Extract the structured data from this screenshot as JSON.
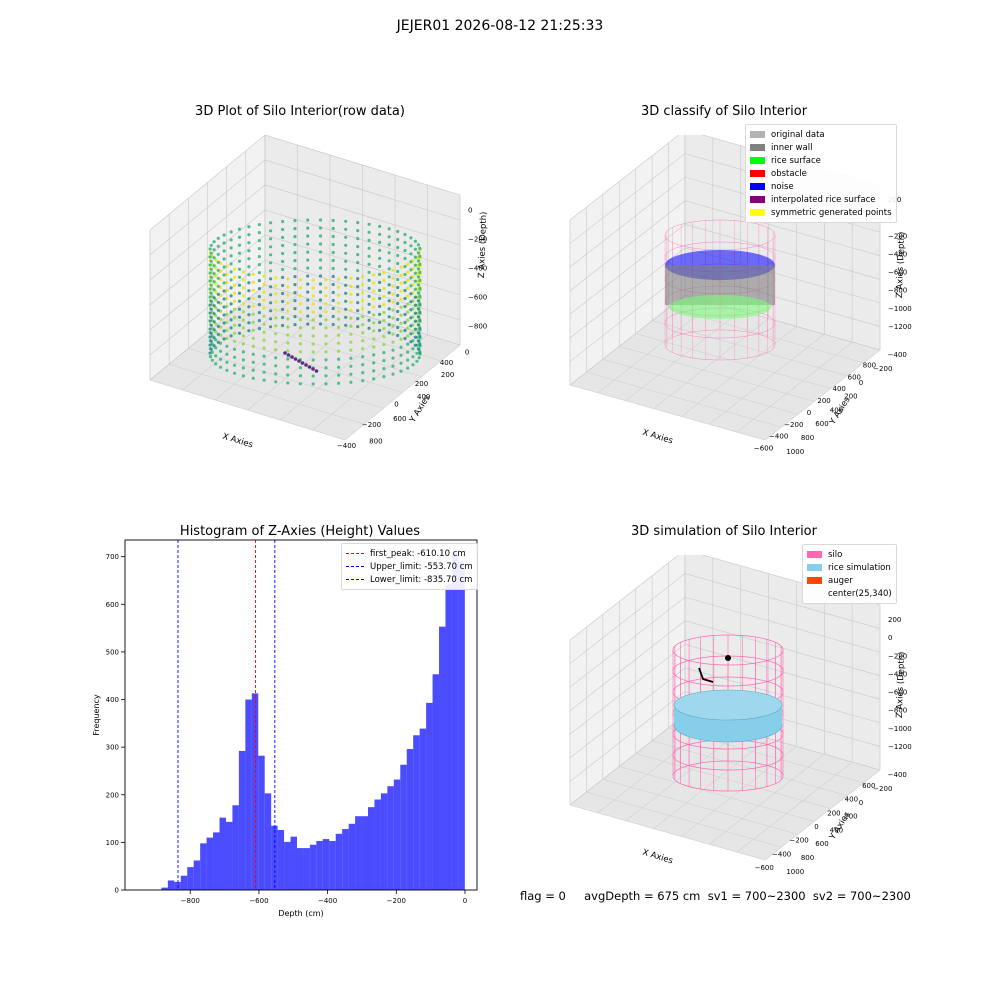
{
  "suptitle": "JEJER01 2026-08-12 21:25:33",
  "status_text": "flag = 0     avgDepth = 675 cm  sv1 = 700~2300  sv2 = 700~2300",
  "panels": {
    "raw": {
      "title": "3D Plot of Silo Interior(row data)",
      "xlabel": "X Axies",
      "ylabel": "Y Axies",
      "zlabel": "Z Axies (Depth)",
      "xticks": [
        "−400",
        "−200",
        "0",
        "200",
        "400"
      ],
      "yticks": [
        "0",
        "200",
        "400",
        "600",
        "800"
      ],
      "zticks": [
        "0",
        "−200",
        "−400",
        "−600",
        "−800"
      ]
    },
    "classify": {
      "title": "3D classify of Silo Interior",
      "xlabel": "X Axies",
      "ylabel": "Y Axies",
      "zlabel": "Z Axies (Depth)",
      "xticks": [
        "−600",
        "−400",
        "−200",
        "0",
        "200",
        "400",
        "600",
        "800"
      ],
      "yticks": [
        "−400",
        "−200",
        "0",
        "200",
        "400",
        "600",
        "800",
        "1000"
      ],
      "zticks": [
        "200",
        "0",
        "−200",
        "−400",
        "−600",
        "−800",
        "−1000",
        "−1200"
      ],
      "legend": [
        {
          "label": "original data",
          "color": "#b3b3b3"
        },
        {
          "label": "inner wall",
          "color": "#808080"
        },
        {
          "label": "rice surface",
          "color": "#00ff00"
        },
        {
          "label": "obstacle",
          "color": "#ff0000"
        },
        {
          "label": "noise",
          "color": "#0000ff"
        },
        {
          "label": "interpolated rice surface",
          "color": "#800080"
        },
        {
          "label": "symmetric generated points",
          "color": "#ffff00"
        }
      ]
    },
    "simulation": {
      "title": "3D simulation of Silo Interior",
      "xlabel": "X Axies",
      "ylabel": "Y Axies",
      "zlabel": "Z Axies (Depth)",
      "xticks": [
        "−600",
        "−400",
        "−200",
        "0",
        "200",
        "400",
        "600"
      ],
      "yticks": [
        "−400",
        "−200",
        "0",
        "200",
        "400",
        "600",
        "800",
        "1000"
      ],
      "zticks": [
        "200",
        "0",
        "−200",
        "−400",
        "−600",
        "−800",
        "−1000",
        "−1200"
      ],
      "legend": [
        {
          "label": "silo",
          "color": "#ff69b4"
        },
        {
          "label": "rice simulation",
          "color": "#87ceeb"
        },
        {
          "label": "auger",
          "color": "#ff4500"
        },
        {
          "label": "center(25,340)",
          "color": "none"
        }
      ]
    }
  },
  "chart_data": {
    "type": "bar",
    "title": "Histogram of Z-Axies (Height) Values",
    "xlabel": "Depth (cm)",
    "ylabel": "Frequency",
    "xlim": [
      -990,
      35
    ],
    "ylim": [
      0,
      735
    ],
    "xticks": [
      -800,
      -600,
      -400,
      -200,
      0
    ],
    "yticks": [
      0,
      100,
      200,
      300,
      400,
      500,
      600,
      700
    ],
    "bar_color": "#0000ff",
    "bin_width": 18.8,
    "bin_starts": [
      -884,
      -865.2,
      -846.4,
      -827.6,
      -808.8,
      -790,
      -771.2,
      -752.4,
      -733.6,
      -714.8,
      -696,
      -677.2,
      -658.4,
      -639.6,
      -620.8,
      -602,
      -583.2,
      -564.4,
      -545.6,
      -526.8,
      -508,
      -489.2,
      -470.4,
      -451.6,
      -432.8,
      -414,
      -395.2,
      -376.4,
      -357.6,
      -338.8,
      -320,
      -301.2,
      -282.4,
      -263.6,
      -244.8,
      -226,
      -207.2,
      -188.4,
      -169.6,
      -150.8,
      -132,
      -113.2,
      -94.4,
      -75.6,
      -56.8,
      -38,
      -19.2
    ],
    "values": [
      5,
      20,
      17,
      30,
      48,
      62,
      98,
      110,
      121,
      152,
      143,
      178,
      292,
      400,
      413,
      282,
      203,
      135,
      126,
      101,
      112,
      88,
      88,
      95,
      103,
      107,
      103,
      118,
      128,
      139,
      155,
      155,
      174,
      190,
      203,
      218,
      232,
      263,
      296,
      325,
      339,
      393,
      453,
      553,
      642,
      708,
      690
    ],
    "vlines": [
      {
        "label": "first_peak: -610.10 cm",
        "x": -610.1,
        "color": "#ff0000"
      },
      {
        "label": "Upper_limit: -553.70 cm",
        "x": -553.7,
        "color": "#0000ff"
      },
      {
        "label": "Lower_limit: -835.70 cm",
        "x": -835.7,
        "color": "#0000ff"
      }
    ]
  }
}
